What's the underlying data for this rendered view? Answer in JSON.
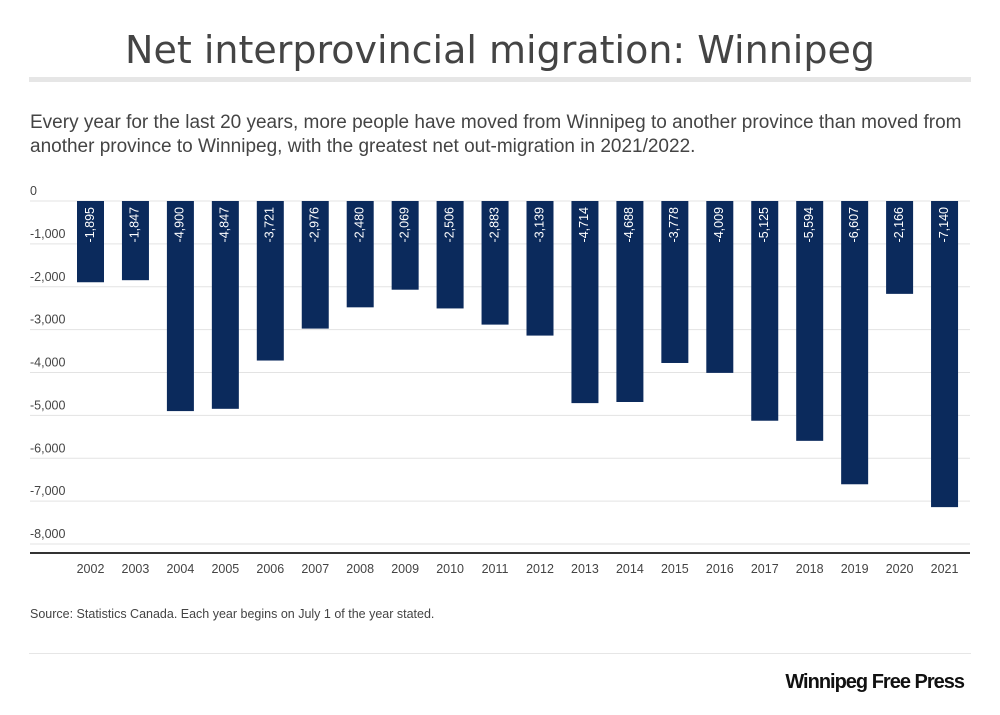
{
  "header": {
    "title": "Net interprovincial migration: Winnipeg",
    "subtitle": "Every year for the last 20 years, more people have moved from Winnipeg to another province than moved from another province to Winnipeg, with the greatest net out-migration in 2021/2022."
  },
  "footer": {
    "source": "Source: Statistics Canada. Each year begins on July 1 of the year stated.",
    "logo": "Winnipeg Free Press"
  },
  "colors": {
    "bar": "#0b2a5c",
    "bar_label": "#ffffff",
    "grid": "#e3e3e3",
    "axis": "#333333",
    "text": "#444444"
  },
  "chart_data": {
    "type": "bar",
    "title": "Net interprovincial migration: Winnipeg",
    "xlabel": "",
    "ylabel": "",
    "categories": [
      "2002",
      "2003",
      "2004",
      "2005",
      "2006",
      "2007",
      "2008",
      "2009",
      "2010",
      "2011",
      "2012",
      "2013",
      "2014",
      "2015",
      "2016",
      "2017",
      "2018",
      "2019",
      "2020",
      "2021"
    ],
    "values": [
      -1895,
      -1847,
      -4900,
      -4847,
      -3721,
      -2976,
      -2480,
      -2069,
      -2506,
      -2883,
      -3139,
      -4714,
      -4688,
      -3778,
      -4009,
      -5125,
      -5594,
      -6607,
      -2166,
      -7140
    ],
    "value_labels": [
      "-1,895",
      "-1,847",
      "-4,900",
      "-4,847",
      "-3,721",
      "-2,976",
      "-2,480",
      "-2,069",
      "-2,506",
      "-2,883",
      "-3,139",
      "-4,714",
      "-4,688",
      "-3,778",
      "-4,009",
      "-5,125",
      "-5,594",
      "-6,607",
      "-2,166",
      "-7,140"
    ],
    "ylim": [
      -8000,
      0
    ],
    "yticks": [
      0,
      -1000,
      -2000,
      -3000,
      -4000,
      -5000,
      -6000,
      -7000,
      -8000
    ],
    "ytick_labels": [
      "0",
      "-1,000",
      "-2,000",
      "-3,000",
      "-4,000",
      "-5,000",
      "-6,000",
      "-7,000",
      "-8,000"
    ],
    "grid": true,
    "legend": "none"
  }
}
